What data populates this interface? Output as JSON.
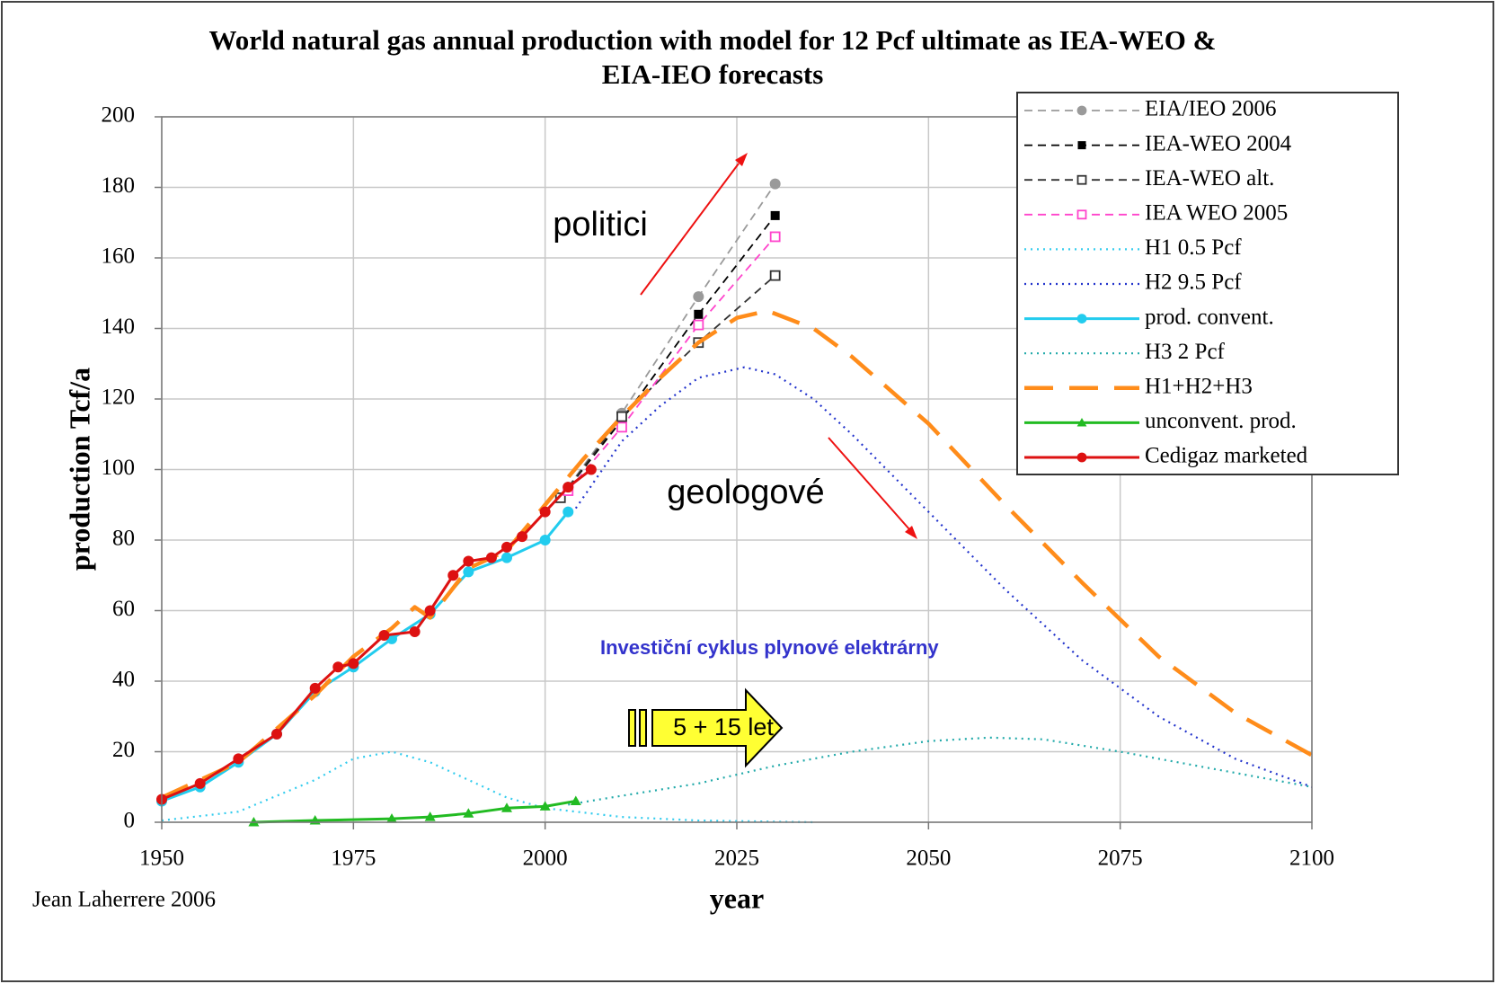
{
  "chart_data": {
    "type": "line",
    "title": "World natural gas annual production with model for 12 Pcf ultimate as IEA-WEO & EIA-IEO forecasts",
    "x_label": "year",
    "y_label": "production Tcf/a",
    "xlim": [
      1950,
      2100
    ],
    "xticks": [
      1950,
      1975,
      2000,
      2025,
      2050,
      2075,
      2100
    ],
    "ylim": [
      0,
      200
    ],
    "yticks": [
      0,
      20,
      40,
      60,
      80,
      100,
      120,
      140,
      160,
      180,
      200
    ],
    "grid": true,
    "legend": "upper right",
    "annotations": [
      "politici",
      "geologové",
      "Investiční cyklus plynové elektrárny",
      "5 + 15 let",
      "Jean Laherrere 2006"
    ],
    "series": [
      {
        "name": "EIA/IEO 2006",
        "color": "#9a9a9a",
        "style": "dashed",
        "marker": "circle",
        "x": [
          2003,
          2010,
          2020,
          2030
        ],
        "values": [
          95,
          116,
          149,
          181
        ]
      },
      {
        "name": "IEA-WEO 2004",
        "color": "#000000",
        "style": "dashed",
        "marker": "square",
        "x": [
          2002,
          2010,
          2020,
          2030
        ],
        "values": [
          92,
          114,
          144,
          172
        ]
      },
      {
        "name": "IEA-WEO alt.",
        "color": "#333333",
        "style": "dashed",
        "marker": "open-square",
        "x": [
          2002,
          2010,
          2020,
          2030
        ],
        "values": [
          92,
          115,
          136,
          155
        ]
      },
      {
        "name": "IEA WEO 2005",
        "color": "#ff44cc",
        "style": "dashed",
        "marker": "open-square",
        "x": [
          2003,
          2010,
          2020,
          2030
        ],
        "values": [
          94,
          112,
          141,
          166
        ]
      },
      {
        "name": "H1 0.5 Pcf",
        "color": "#33ccee",
        "style": "dotted",
        "marker": null,
        "x": [
          1950,
          1960,
          1970,
          1975,
          1980,
          1985,
          1990,
          1995,
          2000,
          2010,
          2020,
          2035
        ],
        "values": [
          0.5,
          3,
          12,
          18,
          20,
          17,
          12,
          7,
          4,
          1.5,
          0.5,
          0
        ]
      },
      {
        "name": "H2 9.5 Pcf",
        "color": "#2233cc",
        "style": "dotted",
        "marker": null,
        "x": [
          2004,
          2010,
          2015,
          2020,
          2026,
          2030,
          2035,
          2040,
          2050,
          2060,
          2070,
          2080,
          2090,
          2100
        ],
        "values": [
          89,
          108,
          118,
          126,
          129,
          127,
          120,
          110,
          88,
          66,
          46,
          30,
          18,
          10
        ]
      },
      {
        "name": "prod. convent.",
        "color": "#22ccee",
        "style": "solid",
        "marker": "circle",
        "x": [
          1950,
          1955,
          1960,
          1965,
          1970,
          1975,
          1980,
          1985,
          1990,
          1995,
          2000,
          2003
        ],
        "values": [
          6,
          10,
          17,
          25,
          37,
          44,
          52,
          59,
          71,
          75,
          80,
          88
        ]
      },
      {
        "name": "H3 2 Pcf",
        "color": "#22aaaa",
        "style": "dotted",
        "marker": null,
        "x": [
          2003,
          2010,
          2020,
          2030,
          2040,
          2050,
          2058,
          2065,
          2075,
          2085,
          2095,
          2100
        ],
        "values": [
          5,
          7.5,
          11,
          16,
          20,
          23,
          24,
          23.5,
          20,
          16,
          12,
          10
        ]
      },
      {
        "name": "H1+H2+H3",
        "color": "#ff8c1a",
        "style": "long-dashed",
        "marker": null,
        "x": [
          1950,
          1960,
          1970,
          1975,
          1980,
          1983,
          1985,
          1990,
          1995,
          2000,
          2005,
          2010,
          2015,
          2020,
          2025,
          2029,
          2035,
          2040,
          2050,
          2060,
          2070,
          2080,
          2090,
          2100
        ],
        "values": [
          7,
          17,
          36,
          47,
          55,
          61,
          58,
          72,
          77,
          90,
          103,
          115,
          126,
          136,
          143,
          145,
          140,
          132,
          113,
          90,
          68,
          47,
          31,
          19
        ]
      },
      {
        "name": "unconvent. prod.",
        "color": "#22bb22",
        "style": "solid",
        "marker": "triangle",
        "x": [
          1962,
          1970,
          1980,
          1985,
          1990,
          1995,
          2000,
          2004
        ],
        "values": [
          0,
          0.5,
          1,
          1.5,
          2.5,
          4,
          4.5,
          6
        ]
      },
      {
        "name": "Cedigaz marketed",
        "color": "#dd1111",
        "style": "solid",
        "marker": "circle",
        "x": [
          1950,
          1955,
          1960,
          1965,
          1970,
          1973,
          1975,
          1979,
          1983,
          1985,
          1988,
          1990,
          1993,
          1995,
          1997,
          2000,
          2003,
          2006
        ],
        "values": [
          6.5,
          11,
          18,
          25,
          38,
          44,
          45,
          53,
          54,
          60,
          70,
          74,
          75,
          78,
          81,
          88,
          95,
          100
        ]
      }
    ]
  }
}
